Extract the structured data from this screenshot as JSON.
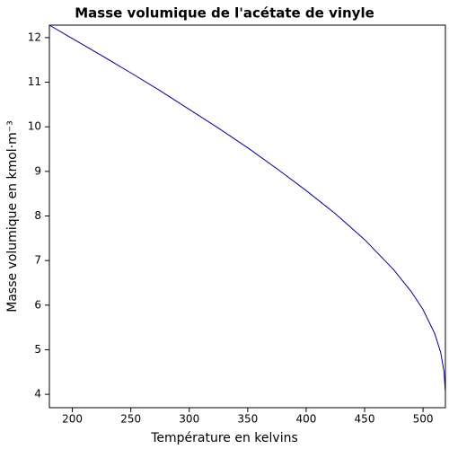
{
  "chart_data": {
    "type": "line",
    "title": "Masse volumique de l'acétate de vinyle",
    "x_label": "Température en kelvins",
    "y_label": "Masse volumique en kmol·m⁻³",
    "x": [
      180.35,
      200,
      225,
      250,
      275,
      300,
      325,
      350,
      375,
      400,
      425,
      450,
      475,
      490,
      500,
      510,
      515,
      518,
      519
    ],
    "series": [
      {
        "color": "#00008b",
        "values": [
          12.28,
          11.98,
          11.6,
          11.21,
          10.81,
          10.39,
          9.97,
          9.53,
          9.06,
          8.57,
          8.05,
          7.47,
          6.79,
          6.3,
          5.9,
          5.36,
          4.95,
          4.5,
          4.08
        ]
      }
    ],
    "xlim": [
      180.35,
      519.13
    ],
    "ylim": [
      3.7,
      12.28
    ],
    "xticks": [
      200,
      250,
      300,
      350,
      400,
      450,
      500
    ],
    "yticks": [
      4,
      5,
      6,
      7,
      8,
      9,
      10,
      11,
      12
    ]
  }
}
